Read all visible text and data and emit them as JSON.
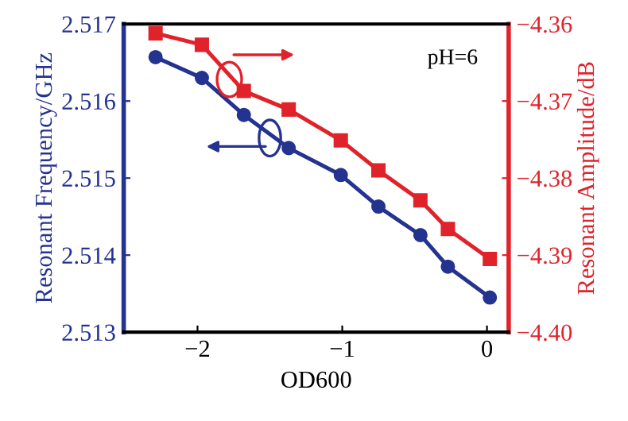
{
  "chart_data": {
    "type": "line",
    "xlabel": "OD600",
    "ylabel": "Resonant Frequency/GHz",
    "y2label": "Resonant Amplitude/dB",
    "series": [
      {
        "color": "#24338f",
        "x": [
          -2.29,
          -1.97,
          -1.68,
          -1.37,
          -1.01,
          -0.75,
          -0.46,
          -0.27,
          0.02
        ],
        "values": [
          2.51657,
          2.5163,
          2.51582,
          2.51539,
          2.51504,
          2.51463,
          2.51426,
          2.51385,
          2.51345
        ]
      },
      {
        "color": "#e0232b",
        "axis": "y2",
        "marker": "square",
        "x": [
          -2.29,
          -1.97,
          -1.68,
          -1.37,
          -1.01,
          -0.75,
          -0.46,
          -0.27,
          0.02
        ],
        "values": [
          -4.3612,
          -4.3627,
          -4.3687,
          -4.3711,
          -4.3751,
          -4.379,
          -4.3829,
          -4.3866,
          -4.3905
        ]
      }
    ],
    "marker": "circle",
    "line_style": "solid",
    "grid": false,
    "legend": false,
    "xlim": [
      -2.51,
      0.15
    ],
    "xticks": [
      {
        "value": -2,
        "label": "−2"
      },
      {
        "value": -1,
        "label": "−1"
      },
      0
    ],
    "ylim": [
      2.513,
      2.517
    ],
    "yticks": [
      2.513,
      2.514,
      2.515,
      2.516,
      2.517
    ],
    "y2lim": [
      -4.4,
      -4.36
    ],
    "y2ticks": [
      {
        "value": -4.4,
        "label": "−4.40"
      },
      {
        "value": -4.39,
        "label": "−4.39"
      },
      {
        "value": -4.38,
        "label": "−4.38"
      },
      {
        "value": -4.37,
        "label": "−4.37"
      },
      {
        "value": -4.36,
        "label": "−4.36"
      }
    ],
    "annotations": [
      "pH=6"
    ]
  }
}
